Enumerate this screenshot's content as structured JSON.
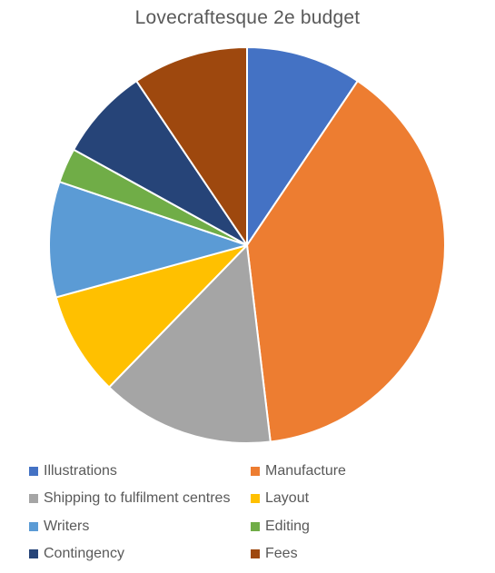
{
  "chart_data": {
    "type": "pie",
    "title": "Lovecraftesque 2e budget",
    "categories": [
      "Illustrations",
      "Manufacture",
      "Shipping to fulfilment centres",
      "Layout",
      "Writers",
      "Editing",
      "Contingency",
      "Fees"
    ],
    "values": [
      10,
      41,
      15,
      9,
      10,
      3,
      8,
      10
    ],
    "colors": [
      "#4472C4",
      "#ED7D31",
      "#A5A5A5",
      "#FFC000",
      "#5B9BD5",
      "#70AD47",
      "#264478",
      "#9E480E"
    ],
    "start_angle": "12 o'clock",
    "direction": "clockwise",
    "slice_border_color": "#FFFFFF",
    "legend_position": "bottom"
  }
}
